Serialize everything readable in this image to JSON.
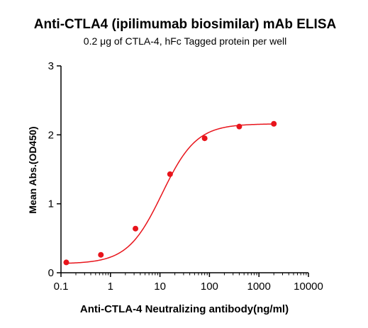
{
  "chart_data": {
    "type": "scatter",
    "title": "Anti-CTLA4 (ipilimumab biosimilar) mAb ELISA",
    "subtitle": "0.2 μg of CTLA-4, hFc Tagged protein per well",
    "xlabel": "Anti-CTLA-4 Neutralizing antibody(ng/ml)",
    "ylabel": "Mean Abs.(OD450)",
    "x_scale": "log",
    "xlim": [
      0.1,
      10000
    ],
    "ylim": [
      0,
      3
    ],
    "x_ticks": [
      0.1,
      1,
      10,
      100,
      1000,
      10000
    ],
    "x_tick_labels": [
      "0.1",
      "1",
      "10",
      "100",
      "1000",
      "10000"
    ],
    "y_ticks": [
      0,
      1,
      2,
      3
    ],
    "y_tick_labels": [
      "0",
      "1",
      "2",
      "3"
    ],
    "grid": false,
    "legend": false,
    "color": "#e8141b",
    "series": [
      {
        "x": [
          0.128,
          0.64,
          3.2,
          16,
          80,
          400,
          2000
        ],
        "y": [
          0.15,
          0.26,
          0.64,
          1.43,
          1.95,
          2.12,
          2.16
        ]
      }
    ],
    "fit_curve": {
      "type": "4PL",
      "bottom": 0.13,
      "top": 2.16,
      "ec50": 11,
      "hill": 1.25
    }
  }
}
